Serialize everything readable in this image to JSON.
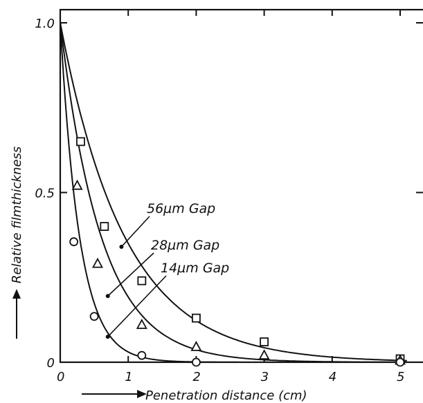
{
  "chart_data": {
    "type": "scatter",
    "title": "",
    "xlabel": "Penetration distance (cm)",
    "ylabel": "Relative filmthickness",
    "xlim": [
      0,
      5.3
    ],
    "ylim": [
      0,
      1.0
    ],
    "x_ticks": [
      {
        "value": 0,
        "label": "0"
      },
      {
        "value": 1,
        "label": "1"
      },
      {
        "value": 2,
        "label": "2"
      },
      {
        "value": 3,
        "label": "3"
      },
      {
        "value": 4,
        "label": "4"
      },
      {
        "value": 5,
        "label": "5"
      }
    ],
    "y_ticks": [
      {
        "value": 0,
        "label": "0"
      },
      {
        "value": 0.5,
        "label": "0.5"
      },
      {
        "value": 1.0,
        "label": "1.0"
      }
    ],
    "grid": false,
    "legend": "none",
    "series": [
      {
        "name": "56µm Gap",
        "marker": "square",
        "points": [
          [
            0.3,
            0.65
          ],
          [
            0.65,
            0.4
          ],
          [
            1.2,
            0.24
          ],
          [
            2.0,
            0.13
          ],
          [
            3.0,
            0.06
          ],
          [
            5.0,
            0.01
          ]
        ],
        "decay": 1.05,
        "label_point": [
          0.9,
          0.34
        ]
      },
      {
        "name": "28µm Gap",
        "marker": "triangle",
        "points": [
          [
            0.25,
            0.52
          ],
          [
            0.55,
            0.29
          ],
          [
            1.2,
            0.11
          ],
          [
            2.0,
            0.045
          ],
          [
            3.0,
            0.02
          ],
          [
            5.0,
            0.005
          ]
        ],
        "decay": 1.65,
        "label_point": [
          0.7,
          0.195
        ]
      },
      {
        "name": "14µm Gap",
        "marker": "circle",
        "points": [
          [
            0.2,
            0.355
          ],
          [
            0.5,
            0.135
          ],
          [
            1.2,
            0.02
          ],
          [
            2.0,
            0.0
          ],
          [
            5.0,
            0.0
          ]
        ],
        "decay": 3.5,
        "label_point": [
          0.7,
          0.075
        ]
      }
    ],
    "annotations": [
      {
        "text": "56µm Gap",
        "series": 0
      },
      {
        "text": "28µm Gap",
        "series": 1
      },
      {
        "text": "14µm Gap",
        "series": 2
      }
    ]
  }
}
